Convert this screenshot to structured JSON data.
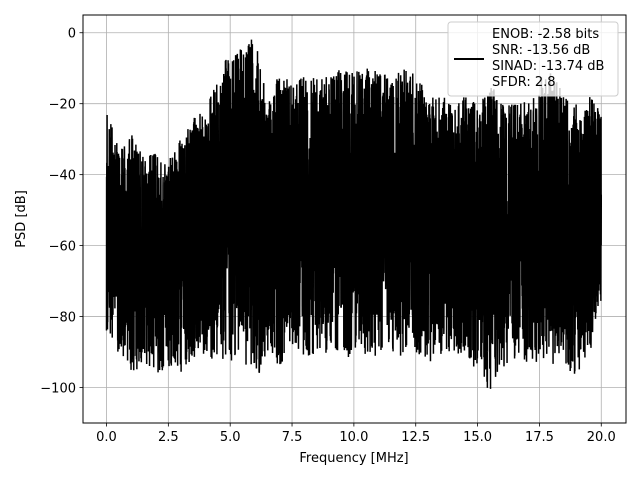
{
  "chart_data": {
    "type": "line",
    "xlabel": "Frequency [MHz]",
    "ylabel": "PSD [dB]",
    "xlim": [
      -0.95,
      21.0
    ],
    "ylim": [
      -110.0,
      5.0
    ],
    "x_ticks": [
      0.0,
      2.5,
      5.0,
      7.5,
      10.0,
      12.5,
      15.0,
      17.5,
      20.0
    ],
    "x_tick_labels": [
      "0.0",
      "2.5",
      "5.0",
      "7.5",
      "10.0",
      "12.5",
      "15.0",
      "17.5",
      "20.0"
    ],
    "y_ticks": [
      0,
      -20,
      -40,
      -60,
      -80,
      -100
    ],
    "y_tick_labels": [
      "0",
      "−20",
      "−40",
      "−60",
      "−80",
      "−100"
    ],
    "grid": true,
    "legend_placement": "top-right",
    "series": [
      {
        "name": "ENOB: -2.58 bits\nSNR: -13.56 dB\nSINAD: -13.74 dB\nSFDR: 2.8",
        "color": "#000000",
        "x_range": [
          0.0,
          20.0
        ],
        "x": [
          0.0,
          0.5,
          1.0,
          1.5,
          2.0,
          2.5,
          3.0,
          3.5,
          4.0,
          4.5,
          5.0,
          5.5,
          6.0,
          6.5,
          7.0,
          7.5,
          8.0,
          8.5,
          9.0,
          9.5,
          10.0,
          10.5,
          11.0,
          11.5,
          12.0,
          12.5,
          13.0,
          13.5,
          14.0,
          14.5,
          15.0,
          15.5,
          16.0,
          16.5,
          17.0,
          17.5,
          18.0,
          18.5,
          19.0,
          19.5,
          20.0
        ],
        "upper_envelope": [
          -20,
          -33,
          -28,
          -35,
          -34,
          -36,
          -30,
          -24,
          -20,
          -14,
          -3,
          -5,
          0,
          -20,
          -10,
          -14,
          -12,
          -13,
          -12,
          -10,
          -11,
          -10,
          -11,
          -12,
          -10,
          -11,
          -18,
          -17,
          -20,
          -18,
          -20,
          -14,
          -20,
          -18,
          -20,
          -12,
          -10,
          -18,
          -20,
          -18,
          -20
        ],
        "lower_envelope": [
          -84,
          -91,
          -96,
          -94,
          -97,
          -96,
          -97,
          -92,
          -93,
          -92,
          -94,
          -92,
          -103,
          -90,
          -94,
          -90,
          -91,
          -92,
          -90,
          -91,
          -94,
          -91,
          -92,
          -90,
          -92,
          -91,
          -94,
          -92,
          -90,
          -92,
          -95,
          -104,
          -95,
          -92,
          -93,
          -93,
          -95,
          -93,
          -98,
          -93,
          -72
        ],
        "typical_band": [
          -40,
          -80
        ]
      }
    ],
    "legend": {
      "lines": [
        "ENOB: -2.58 bits",
        "SNR: -13.56 dB",
        "SINAD: -13.74 dB",
        "SFDR: 2.8"
      ]
    }
  }
}
